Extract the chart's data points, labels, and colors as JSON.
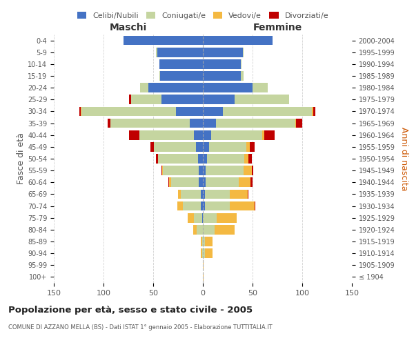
{
  "age_groups": [
    "100+",
    "95-99",
    "90-94",
    "85-89",
    "80-84",
    "75-79",
    "70-74",
    "65-69",
    "60-64",
    "55-59",
    "50-54",
    "45-49",
    "40-44",
    "35-39",
    "30-34",
    "25-29",
    "20-24",
    "15-19",
    "10-14",
    "5-9",
    "0-4"
  ],
  "birth_years": [
    "≤ 1904",
    "1905-1909",
    "1910-1914",
    "1915-1919",
    "1920-1924",
    "1925-1929",
    "1930-1934",
    "1935-1939",
    "1940-1944",
    "1945-1949",
    "1950-1954",
    "1955-1959",
    "1960-1964",
    "1965-1969",
    "1970-1974",
    "1975-1979",
    "1980-1984",
    "1985-1989",
    "1990-1994",
    "1995-1999",
    "2000-2004"
  ],
  "colors": {
    "celibi": "#4472C4",
    "coniugati": "#c5d5a0",
    "vedovi": "#F4B942",
    "divorziati": "#C00000"
  },
  "maschi": {
    "celibi": [
      0,
      0,
      0,
      0,
      0,
      1,
      2,
      2,
      4,
      4,
      5,
      7,
      9,
      13,
      27,
      42,
      55,
      43,
      44,
      46,
      80
    ],
    "coniugati": [
      0,
      0,
      1,
      1,
      6,
      8,
      18,
      20,
      28,
      36,
      40,
      42,
      55,
      80,
      95,
      30,
      8,
      1,
      0,
      1,
      0
    ],
    "vedovi": [
      0,
      0,
      1,
      1,
      4,
      6,
      6,
      3,
      2,
      1,
      0,
      0,
      0,
      0,
      1,
      0,
      0,
      0,
      0,
      0,
      0
    ],
    "divorziati": [
      0,
      0,
      0,
      0,
      0,
      0,
      0,
      0,
      1,
      1,
      2,
      4,
      10,
      3,
      1,
      2,
      0,
      0,
      0,
      0,
      0
    ]
  },
  "femmine": {
    "celibi": [
      0,
      0,
      0,
      0,
      0,
      0,
      2,
      2,
      3,
      3,
      4,
      6,
      8,
      13,
      20,
      32,
      50,
      38,
      38,
      40,
      70
    ],
    "coniugati": [
      0,
      0,
      2,
      2,
      12,
      14,
      25,
      25,
      33,
      38,
      38,
      38,
      52,
      80,
      90,
      55,
      15,
      3,
      1,
      1,
      0
    ],
    "vedovi": [
      1,
      1,
      8,
      8,
      20,
      20,
      25,
      18,
      12,
      8,
      4,
      3,
      2,
      1,
      1,
      0,
      0,
      0,
      0,
      0,
      0
    ],
    "divorziati": [
      0,
      0,
      0,
      0,
      0,
      0,
      1,
      1,
      2,
      2,
      3,
      5,
      10,
      6,
      2,
      0,
      0,
      0,
      0,
      0,
      0
    ]
  },
  "title": "Popolazione per età, sesso e stato civile - 2005",
  "subtitle": "COMUNE DI AZZANO MELLA (BS) - Dati ISTAT 1° gennaio 2005 - Elaborazione TUTTITALIA.IT",
  "xlabel_left": "Maschi",
  "xlabel_right": "Femmine",
  "ylabel_left": "Fasce di età",
  "ylabel_right": "Anni di nascita",
  "xlim": 150,
  "legend_labels": [
    "Celibi/Nubili",
    "Coniugati/e",
    "Vedovi/e",
    "Divorziati/e"
  ],
  "bg_color": "#ffffff",
  "grid_color": "#cccccc"
}
